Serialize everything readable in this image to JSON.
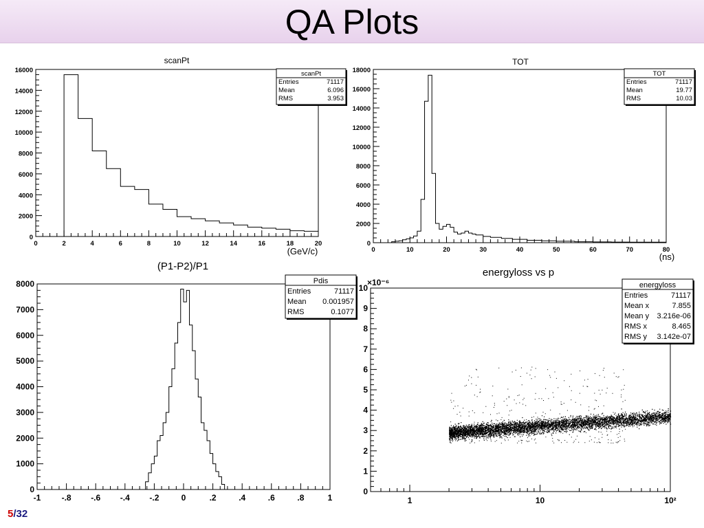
{
  "slide": {
    "title": "QA Plots",
    "page_current": "5",
    "page_separator": "/",
    "page_total": "32"
  },
  "chart_data": [
    {
      "id": "scanPt",
      "type": "histogram",
      "title": "scanPt",
      "xlabel": "(GeV/c)",
      "ylabel": "",
      "xlim": [
        0,
        20
      ],
      "ylim": [
        0,
        16000
      ],
      "xticks": [
        0,
        2,
        4,
        6,
        8,
        10,
        12,
        14,
        16,
        18,
        20
      ],
      "yticks": [
        0,
        2000,
        4000,
        6000,
        8000,
        10000,
        12000,
        14000,
        16000
      ],
      "bin_edges": [
        2,
        3,
        4,
        5,
        6,
        7,
        8,
        9,
        10,
        11,
        12,
        13,
        14,
        15,
        16,
        17,
        18,
        19,
        20
      ],
      "values": [
        15500,
        11300,
        8200,
        6500,
        4800,
        4500,
        3100,
        2600,
        1900,
        1700,
        1500,
        1300,
        1100,
        900,
        800,
        700,
        550,
        500
      ],
      "stats": {
        "name": "scanPt",
        "rows": [
          {
            "label": "Entries",
            "value": "71117"
          },
          {
            "label": "Mean",
            "value": "6.096"
          },
          {
            "label": "RMS",
            "value": "3.953"
          }
        ]
      }
    },
    {
      "id": "TOT",
      "type": "histogram",
      "title": "TOT",
      "xlabel": "(ns)",
      "ylabel": "",
      "xlim": [
        0,
        80
      ],
      "ylim": [
        0,
        18000
      ],
      "xticks": [
        0,
        10,
        20,
        30,
        40,
        50,
        60,
        70,
        80
      ],
      "yticks": [
        0,
        2000,
        4000,
        6000,
        8000,
        10000,
        12000,
        14000,
        16000,
        18000
      ],
      "bin_edges": [
        5,
        6,
        7,
        8,
        9,
        10,
        11,
        12,
        13,
        14,
        15,
        16,
        17,
        18,
        19,
        20,
        21,
        22,
        23,
        24,
        25,
        26,
        27,
        28,
        30,
        32,
        35,
        38,
        42,
        46,
        50,
        55,
        60,
        65,
        70,
        80
      ],
      "values": [
        100,
        150,
        200,
        300,
        400,
        500,
        700,
        1200,
        4500,
        14700,
        17400,
        7200,
        2000,
        1400,
        1700,
        1900,
        1600,
        1100,
        900,
        1000,
        1200,
        1000,
        900,
        800,
        650,
        550,
        450,
        350,
        250,
        200,
        150,
        100,
        80,
        60,
        50
      ],
      "stats": {
        "name": "TOT",
        "rows": [
          {
            "label": "Entries",
            "value": "71117"
          },
          {
            "label": "Mean",
            "value": "19.77"
          },
          {
            "label": "RMS",
            "value": "10.03"
          }
        ]
      }
    },
    {
      "id": "Pdis",
      "type": "histogram",
      "title": "(P1-P2)/P1",
      "xlabel": "",
      "ylabel": "",
      "xlim": [
        -1,
        1
      ],
      "ylim": [
        0,
        8000
      ],
      "xticks": [
        -1,
        -0.8,
        -0.6,
        -0.4,
        -0.2,
        0,
        0.2,
        0.4,
        0.6,
        0.8,
        1
      ],
      "yticks": [
        0,
        1000,
        2000,
        3000,
        4000,
        5000,
        6000,
        7000,
        8000
      ],
      "bin_edges": [
        -0.26,
        -0.24,
        -0.22,
        -0.2,
        -0.18,
        -0.16,
        -0.14,
        -0.12,
        -0.1,
        -0.08,
        -0.06,
        -0.04,
        -0.02,
        0.0,
        0.02,
        0.04,
        0.06,
        0.08,
        0.1,
        0.12,
        0.14,
        0.16,
        0.18,
        0.2,
        0.22,
        0.24,
        0.26,
        0.28
      ],
      "values": [
        300,
        650,
        1000,
        1300,
        1900,
        2100,
        2600,
        3000,
        4000,
        4700,
        5700,
        6500,
        7800,
        7300,
        7750,
        6400,
        5400,
        4300,
        3600,
        2600,
        2300,
        1900,
        1400,
        1000,
        700,
        500,
        200
      ],
      "stats": {
        "name": "Pdis",
        "rows": [
          {
            "label": "Entries",
            "value": "71117"
          },
          {
            "label": "Mean",
            "value": "0.001957"
          },
          {
            "label": "RMS",
            "value": "0.1077"
          }
        ]
      }
    },
    {
      "id": "energyloss",
      "type": "scatter",
      "title": "energyloss vs p",
      "xlabel": "",
      "ylabel": "",
      "xscale": "log",
      "xlim": [
        0.5,
        100
      ],
      "ylim": [
        0,
        10
      ],
      "xticks": [
        1,
        10,
        100
      ],
      "xtick_labels": [
        "1",
        "10",
        "10²"
      ],
      "yticks": [
        0,
        1,
        2,
        3,
        4,
        5,
        6,
        7,
        8,
        9,
        10
      ],
      "y_multiplier": "×10⁻⁶",
      "stats": {
        "name": "energyloss",
        "rows": [
          {
            "label": "Entries",
            "value": "71117"
          },
          {
            "label": "Mean x",
            "value": "7.855"
          },
          {
            "label": "Mean y",
            "value": "3.216e-06"
          },
          {
            "label": "RMS x",
            "value": "8.465"
          },
          {
            "label": "RMS y",
            "value": "3.142e-07"
          }
        ]
      },
      "band": {
        "x_range": [
          2,
          100
        ],
        "y_center_at_x_min": 2.9,
        "y_center_at_x_max": 3.7,
        "y_width": 0.55,
        "scatter_y_range": [
          2.4,
          6.2
        ]
      }
    }
  ]
}
